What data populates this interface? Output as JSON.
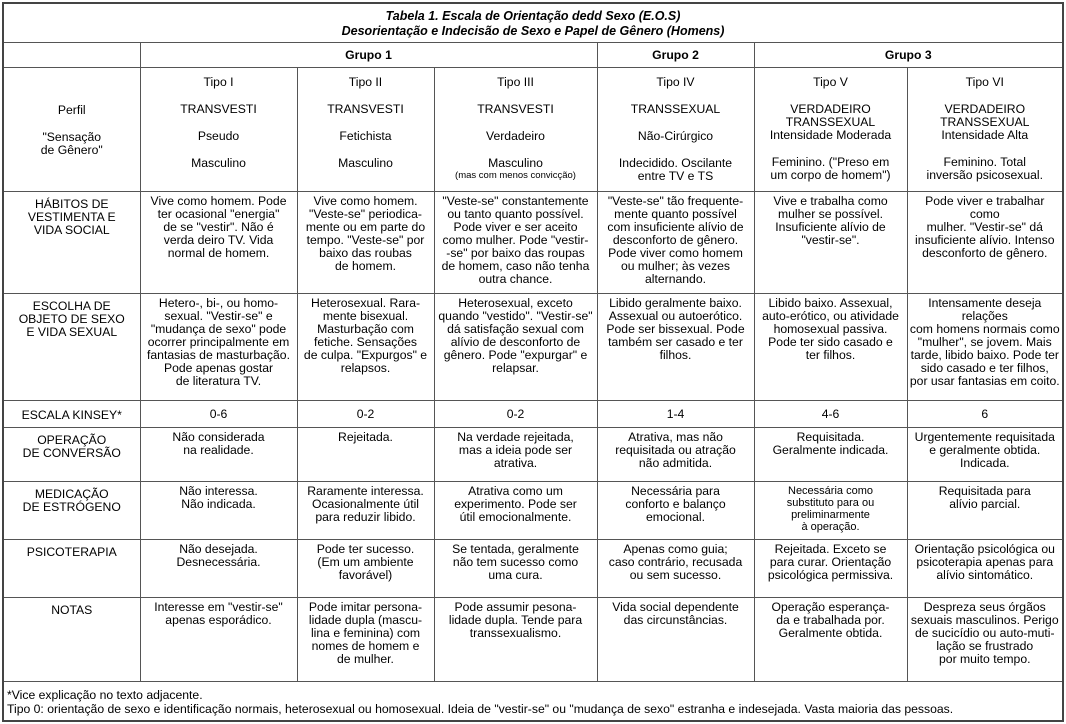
{
  "title": {
    "line1": "Tabela 1. Escala de Orientação dedd Sexo (E.O.S)",
    "line2": "Desorientação e Indecisão de Sexo e Papel de Gênero (Homens)"
  },
  "groups": [
    "Grupo 1",
    "Grupo 2",
    "Grupo 3"
  ],
  "perfil": {
    "label": "Perfil",
    "sensation_label": "\"Sensação\nde Gênero\"",
    "types": [
      {
        "tipo": "Tipo I",
        "name": "TRANSVESTI",
        "sub": "Pseudo",
        "sensation": "Masculino",
        "note": ""
      },
      {
        "tipo": "Tipo II",
        "name": "TRANSVESTI",
        "sub": "Fetichista",
        "sensation": "Masculino",
        "note": ""
      },
      {
        "tipo": "Tipo III",
        "name": "TRANSVESTI",
        "sub": "Verdadeiro",
        "sensation": "Masculino",
        "note": "(mas com menos convicção)"
      },
      {
        "tipo": "Tipo IV",
        "name": "TRANSSEXUAL",
        "sub": "Não-Cirúrgico",
        "sensation": "Indecidido. Oscilante\nentre TV e TS",
        "note": ""
      },
      {
        "tipo": "Tipo V",
        "name": "VERDADEIRO\nTRANSSEXUAL",
        "sub": "Intensidade Moderada",
        "sensation": "Feminino. (\"Preso em\num corpo de homem\")",
        "note": ""
      },
      {
        "tipo": "Tipo VI",
        "name": "VERDADEIRO\nTRANSSEXUAL",
        "sub": "Intensidade Alta",
        "sensation": "Feminino. Total\ninversão psicosexual.",
        "note": ""
      }
    ]
  },
  "rows": [
    {
      "key": "hab",
      "label": "HÁBITOS DE\nVESTIMENTA E\nVIDA SOCIAL",
      "cells": [
        "Vive como homem. Pode\nter ocasional \"energia\"\nde se \"vestir\". Não é\nverda deiro TV. Vida\nnormal de homem.",
        "Vive como homem.\n\"Veste-se\" periodica-\nmente ou em parte do\ntempo. \"Veste-se\" por\nbaixo das roubas\nde homem.",
        "\"Veste-se\" constantemente\nou tanto quanto possível.\nPode viver e ser aceito\ncomo mulher. Pode \"vestir-\n-se\" por baixo das roupas\nde homem, caso não tenha\noutra chance.",
        "\"Veste-se\" tão frequente-\nmente quanto possível\ncom insuficiente alívio de\ndesconforto de gênero.\nPode viver como homem\nou mulher; às vezes\nalternando.",
        "Vive e trabalha como\nmulher se possível.\nInsuficiente alívio de\n\"vestir-se\".",
        "Pode viver e trabalhar como\nmulher. \"Vestir-se\" dá\ninsuficiente alívio. Intenso\ndesconforto de gênero."
      ]
    },
    {
      "key": "esc",
      "label": "ESCOLHA DE\nOBJETO DE SEXO\nE VIDA SEXUAL",
      "cells": [
        "Hetero-, bi-, ou homo-\nsexual. \"Vestir-se\" e\n\"mudança de sexo\" pode\nocorrer principalmente em\nfantasias de masturbação.\nPode apenas gostar\nde literatura TV.",
        "Heterosexual. Rara-\nmente bisexual.\nMasturbação com\nfetiche. Sensações\nde culpa. \"Expurgos\" e\nrelapsos.",
        "Heterosexual, exceto\nquando \"vestido\". \"Vestir-se\"\ndá satisfação sexual com\nalívio de desconforto de\ngênero. Pode \"expurgar\" e\nrelapsar.",
        "Libido geralmente baixo.\nAssexual ou autoerótico.\nPode ser bissexual. Pode\ntambém ser casado e ter\nfilhos.",
        "Libido baixo. Assexual,\nauto-erótico, ou atividade\nhomosexual passiva.\nPode ter sido casado e\nter filhos.",
        "Intensamente deseja relações\ncom homens normais como\n\"mulher\", se jovem. Mais\ntarde, libido baixo. Pode ter\nsido casado e ter filhos,\npor usar fantasias em coito."
      ]
    },
    {
      "key": "kin",
      "label": "ESCALA KINSEY*",
      "cells": [
        "0-6",
        "0-2",
        "0-2",
        "1-4",
        "4-6",
        "6"
      ]
    },
    {
      "key": "ope",
      "label": "OPERAÇÃO\nDE CONVERSÃO",
      "cells": [
        "Não considerada\nna realidade.",
        "Rejeitada.",
        "Na verdade rejeitada,\nmas a ideia pode ser\natrativa.",
        "Atrativa, mas não\nrequisitada ou atração\nnão admitida.",
        "Requisitada.\nGeralmente indicada.",
        "Urgentemente requisitada\ne geralmente obtida.\nIndicada."
      ]
    },
    {
      "key": "med",
      "label": "MEDICAÇÃO\nDE ESTRÓGENO",
      "cells": [
        "Não interessa.\nNão indicada.",
        "Raramente interessa.\nOcasionalmente útil\npara reduzir libido.",
        "Atrativa como um\nexperimento. Pode ser\nútil emocionalmente.",
        "Necessária para\nconforto e balanço\nemocional.",
        "Necessária como\nsubstituto para ou\npreliminarmente\nà operação.",
        "Requisitada para\nalívio parcial."
      ]
    },
    {
      "key": "psi",
      "label": "PSICOTERAPIA",
      "cells": [
        "Não desejada.\nDesnecessária.",
        "Pode ter sucesso.\n(Em um ambiente\nfavorável)",
        "Se tentada, geralmente\nnão tem sucesso como\numa cura.",
        "Apenas como guia;\ncaso contrário, recusada\nou sem sucesso.",
        "Rejeitada. Exceto se\npara curar. Orientação\npsicológica permissiva.",
        "Orientação psicológica ou\npsicoterapia apenas para\nalívio sintomático."
      ]
    },
    {
      "key": "not",
      "label": "NOTAS",
      "cells": [
        "Interesse em \"vestir-se\"\napenas esporádico.",
        "Pode imitar persona-\nlidade dupla (mascu-\nlina e feminina) com\nnomes de homem e\nde mulher.",
        "Pode assumir pesona-\nlidade dupla. Tende para\ntranssexualismo.",
        "Vida social dependente\ndas circunstâncias.",
        "Operação esperança-\nda e trabalhada por.\nGeralmente obtida.",
        "Despreza seus órgãos\nsexuais masculinos. Perigo\nde sucicídio ou auto-muti-\nlação se frustrado\npor muito tempo."
      ]
    }
  ],
  "footnotes": [
    "*Vice explicação no texto adjacente.",
    "Tipo 0: orientação de sexo e identificação normais, heterosexual ou homosexual. Ideia de \"vestir-se\" ou \"mudança de sexo\" estranha e indesejada. Vasta maioria das pessoas."
  ]
}
